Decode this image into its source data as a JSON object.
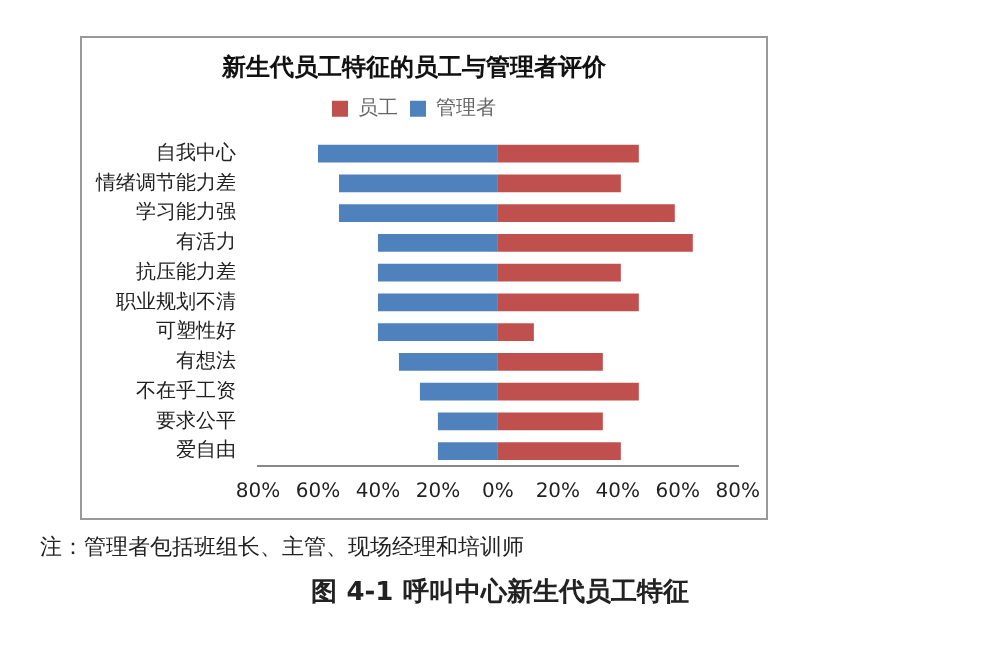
{
  "chart_data": {
    "type": "bar",
    "orientation": "horizontal",
    "stacked": true,
    "title": "新生代员工特征的员工与管理者评价",
    "categories": [
      "自我中心",
      "情绪调节能力差",
      "学习能力强",
      "有活力",
      "抗压能力差",
      "职业规划不清",
      "可塑性好",
      "有想法",
      "不在乎工资",
      "要求公平",
      "爱自由"
    ],
    "series": [
      {
        "name": "员工",
        "color": "#c0504d",
        "values": [
          47,
          41,
          59,
          65,
          41,
          47,
          12,
          35,
          47,
          35,
          41
        ]
      },
      {
        "name": "管理者",
        "color": "#4f81bd",
        "values": [
          -60,
          -53,
          -53,
          -40,
          -40,
          -40,
          -40,
          -33,
          -26,
          -20,
          -20
        ]
      }
    ],
    "xlim": [
      -80,
      80
    ],
    "xticks": [
      {
        "value": -80,
        "label": "80%"
      },
      {
        "value": -60,
        "label": "60%"
      },
      {
        "value": -40,
        "label": "40%"
      },
      {
        "value": -20,
        "label": "20%"
      },
      {
        "value": 0,
        "label": "0%"
      },
      {
        "value": 20,
        "label": "20%"
      },
      {
        "value": 40,
        "label": "40%"
      },
      {
        "value": 60,
        "label": "60%"
      },
      {
        "value": 80,
        "label": "80%"
      }
    ],
    "grid": false,
    "legend": "top",
    "annotations": [
      "注：管理者包括班组长、主管、现场经理和培训师",
      "图 4-1 呼叫中心新生代员工特征"
    ]
  }
}
